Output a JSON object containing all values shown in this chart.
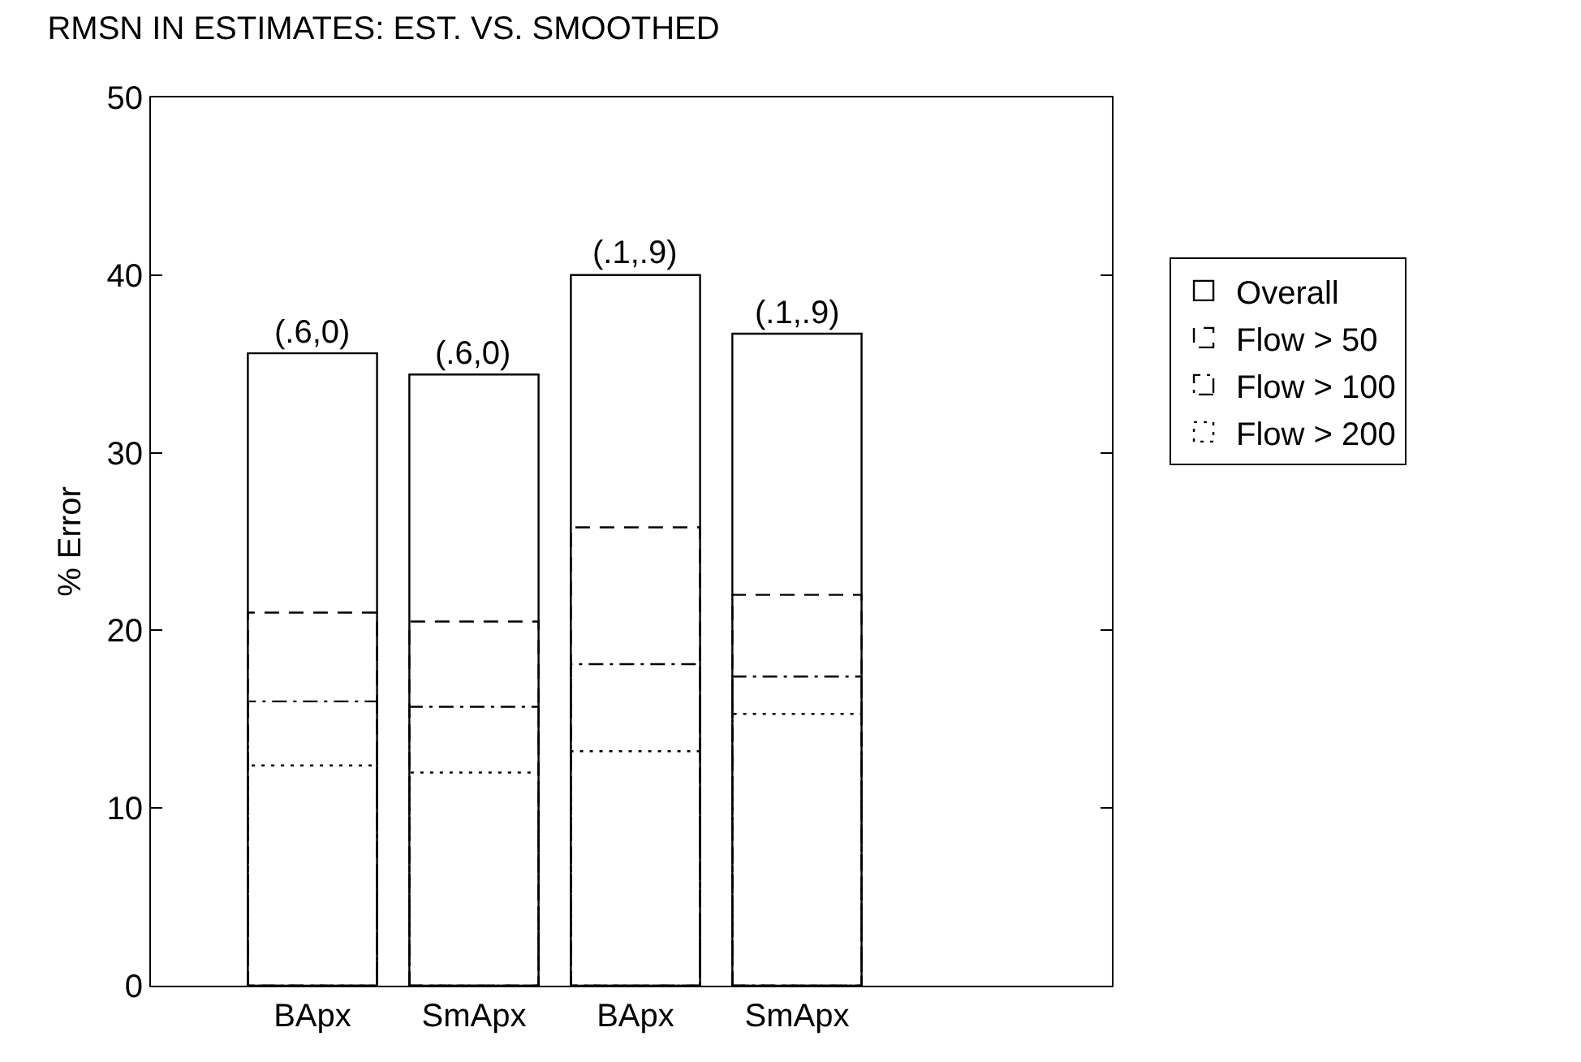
{
  "chart_data": {
    "type": "bar",
    "title": "RMSN IN ESTIMATES: EST. VS. SMOOTHED",
    "ylabel": "% Error",
    "categories": [
      "BApx",
      "SmApx",
      "BApx",
      "SmApx"
    ],
    "series": [
      {
        "name": "Flow > 200",
        "color": "#000000",
        "line_style": "dotted",
        "values": [
          12.4,
          12.0,
          13.2,
          15.3
        ]
      },
      {
        "name": "Flow > 100",
        "color": "#000000",
        "line_style": "dashdot",
        "values": [
          16.0,
          15.7,
          18.1,
          17.4
        ]
      },
      {
        "name": "Flow > 50",
        "color": "#000000",
        "line_style": "dashed",
        "values": [
          21.0,
          20.5,
          25.8,
          22.0
        ]
      },
      {
        "name": "Overall",
        "color": "#000000",
        "line_style": "solid",
        "values": [
          35.6,
          34.4,
          40.0,
          36.7
        ]
      }
    ],
    "annotations": [
      "(.6,0)",
      "(.6,0)",
      "(.1,.9)",
      "(.1,.9)"
    ],
    "ylim": [
      0,
      50
    ],
    "yticks": [
      0,
      10,
      20,
      30,
      40,
      50
    ],
    "grid": false,
    "legend": "right"
  }
}
